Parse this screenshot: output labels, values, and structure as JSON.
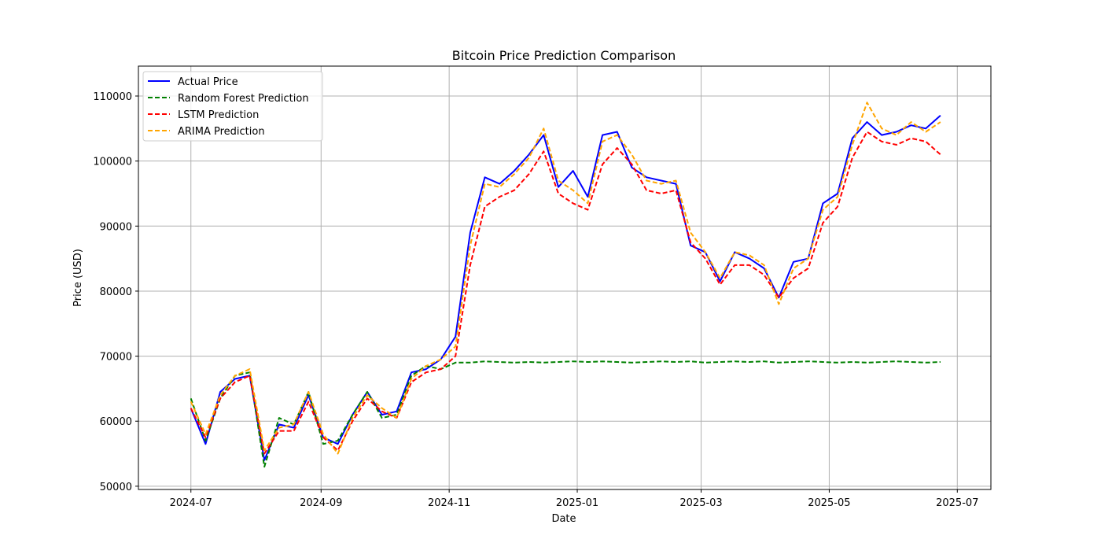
{
  "chart_data": {
    "type": "line",
    "title": "Bitcoin Price Prediction Comparison",
    "xlabel": "Date",
    "ylabel": "Price (USD)",
    "x_ticks": [
      "2024-07",
      "2024-09",
      "2024-11",
      "2025-01",
      "2025-03",
      "2025-05",
      "2025-07"
    ],
    "y_ticks": [
      "50000",
      "60000",
      "70000",
      "80000",
      "90000",
      "100000",
      "110000"
    ],
    "x_range": [
      "2024-06-06",
      "2025-07-17"
    ],
    "ylim": [
      49500,
      114600
    ],
    "grid": true,
    "legend_position": "top-left",
    "x": [
      "2024-07-01",
      "2024-07-08",
      "2024-07-15",
      "2024-07-22",
      "2024-07-29",
      "2024-08-05",
      "2024-08-12",
      "2024-08-19",
      "2024-08-26",
      "2024-09-02",
      "2024-09-09",
      "2024-09-16",
      "2024-09-23",
      "2024-09-30",
      "2024-10-07",
      "2024-10-14",
      "2024-10-21",
      "2024-10-28",
      "2024-11-04",
      "2024-11-11",
      "2024-11-18",
      "2024-11-25",
      "2024-12-02",
      "2024-12-09",
      "2024-12-16",
      "2024-12-23",
      "2024-12-30",
      "2025-01-06",
      "2025-01-13",
      "2025-01-20",
      "2025-01-27",
      "2025-02-03",
      "2025-02-10",
      "2025-02-17",
      "2025-02-24",
      "2025-03-03",
      "2025-03-10",
      "2025-03-17",
      "2025-03-24",
      "2025-03-31",
      "2025-04-07",
      "2025-04-14",
      "2025-04-21",
      "2025-04-28",
      "2025-05-05",
      "2025-05-12",
      "2025-05-19",
      "2025-05-26",
      "2025-06-02",
      "2025-06-09",
      "2025-06-16",
      "2025-06-23"
    ],
    "series": [
      {
        "name": "Actual Price",
        "color": "#0000ff",
        "dash": "solid",
        "values": [
          62000,
          56500,
          64500,
          66500,
          67000,
          54000,
          59500,
          59000,
          64000,
          57500,
          56500,
          61000,
          64500,
          61000,
          61500,
          67500,
          68000,
          69500,
          73000,
          89000,
          97500,
          96500,
          98500,
          101000,
          104000,
          96000,
          98500,
          94500,
          104000,
          104500,
          99000,
          97500,
          97000,
          96500,
          87000,
          86000,
          81500,
          86000,
          85000,
          83500,
          79000,
          84500,
          85000,
          93500,
          95000,
          103500,
          106000,
          104000,
          104500,
          105500,
          105000,
          107000
        ]
      },
      {
        "name": "Random Forest Prediction",
        "color": "#008000",
        "dash": "dashed",
        "values": [
          63500,
          57000,
          63500,
          67000,
          67500,
          53000,
          60500,
          59500,
          64500,
          56500,
          57000,
          61000,
          64500,
          60500,
          61000,
          67000,
          68500,
          68000,
          69000,
          69000,
          69200,
          69100,
          69000,
          69100,
          69000,
          69100,
          69200,
          69100,
          69200,
          69100,
          69000,
          69100,
          69200,
          69100,
          69200,
          69000,
          69100,
          69200,
          69100,
          69200,
          69000,
          69100,
          69200,
          69100,
          69000,
          69100,
          69000,
          69100,
          69200,
          69100,
          69000,
          69100
        ]
      },
      {
        "name": "LSTM Prediction",
        "color": "#ff0000",
        "dash": "dashed",
        "values": [
          62000,
          57500,
          63500,
          66000,
          67000,
          55000,
          58500,
          58500,
          63000,
          57500,
          55500,
          60000,
          63500,
          61500,
          60500,
          66000,
          67500,
          68000,
          70000,
          84000,
          93000,
          94500,
          95500,
          98000,
          101500,
          95000,
          93500,
          92500,
          99500,
          102000,
          99500,
          95500,
          95000,
          95500,
          87500,
          85000,
          81000,
          84000,
          84000,
          82500,
          79000,
          82000,
          83500,
          90500,
          93000,
          100500,
          104500,
          103000,
          102500,
          103500,
          103000,
          101000
        ]
      },
      {
        "name": "ARIMA Prediction",
        "color": "#ffa500",
        "dash": "dashed",
        "values": [
          63000,
          58000,
          64000,
          67000,
          68000,
          55500,
          59000,
          59500,
          64500,
          58000,
          55000,
          60500,
          64000,
          62000,
          60500,
          66500,
          68500,
          69500,
          71500,
          87000,
          96500,
          96000,
          98000,
          100500,
          105000,
          97000,
          95500,
          93500,
          103000,
          104000,
          101000,
          97000,
          96500,
          97000,
          89000,
          86000,
          82000,
          86000,
          85500,
          84000,
          78000,
          83500,
          85000,
          92500,
          94500,
          102500,
          109000,
          105000,
          104000,
          106000,
          104500,
          106000
        ]
      }
    ]
  }
}
